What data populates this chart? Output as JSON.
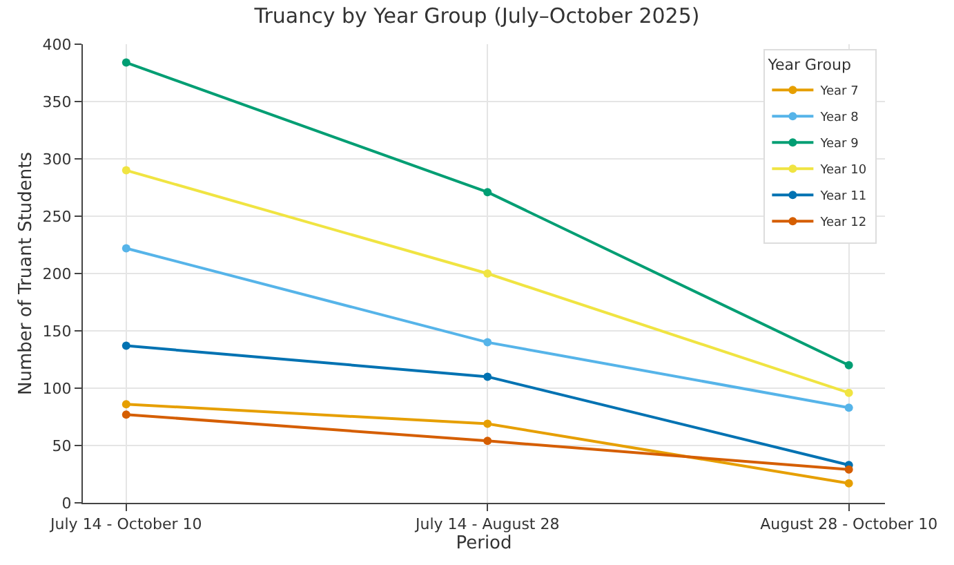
{
  "chart_data": {
    "type": "line",
    "title": "Truancy by Year Group (July–October 2025)",
    "xlabel": "Period",
    "ylabel": "Number of Truant Students",
    "legend_title": "Year Group",
    "categories": [
      "July 14 - October 10",
      "July 14 - August 28",
      "August 28 - October 10"
    ],
    "series": [
      {
        "name": "Year 7",
        "color": "#e69f00",
        "values": [
          86,
          69,
          17
        ]
      },
      {
        "name": "Year 8",
        "color": "#56b4e9",
        "values": [
          222,
          140,
          83
        ]
      },
      {
        "name": "Year 9",
        "color": "#009e73",
        "values": [
          384,
          271,
          120
        ]
      },
      {
        "name": "Year 10",
        "color": "#f0e442",
        "values": [
          290,
          200,
          96
        ]
      },
      {
        "name": "Year 11",
        "color": "#0072b2",
        "values": [
          137,
          110,
          33
        ]
      },
      {
        "name": "Year 12",
        "color": "#d55e00",
        "values": [
          77,
          54,
          29
        ]
      }
    ],
    "ylim": [
      0,
      400
    ],
    "yticks": [
      0,
      50,
      100,
      150,
      200,
      250,
      300,
      350,
      400
    ],
    "grid": true,
    "legend": "top right",
    "marker": "circle",
    "line_style": "solid"
  }
}
